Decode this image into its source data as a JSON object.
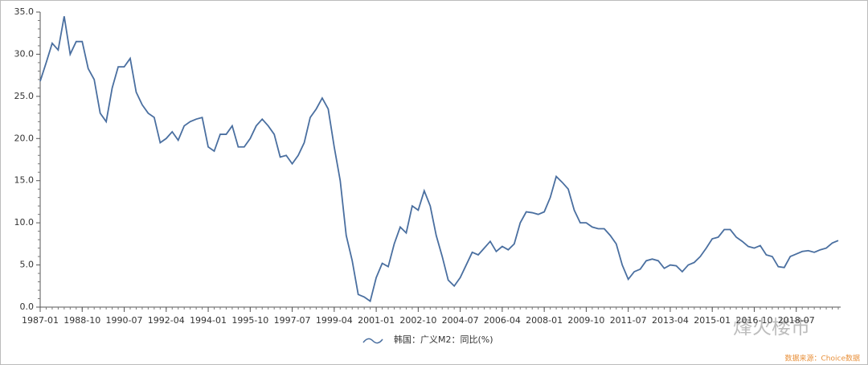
{
  "chart_data": {
    "type": "line",
    "x": [
      "1987-01",
      "1987-04",
      "1987-07",
      "1987-10",
      "1988-01",
      "1988-04",
      "1988-07",
      "1988-10",
      "1989-01",
      "1989-04",
      "1989-07",
      "1989-10",
      "1990-01",
      "1990-04",
      "1990-07",
      "1990-10",
      "1991-01",
      "1991-04",
      "1991-07",
      "1991-10",
      "1992-01",
      "1992-04",
      "1992-07",
      "1992-10",
      "1993-01",
      "1993-04",
      "1993-07",
      "1993-10",
      "1994-01",
      "1994-04",
      "1994-07",
      "1994-10",
      "1995-01",
      "1995-04",
      "1995-07",
      "1995-10",
      "1996-01",
      "1996-04",
      "1996-07",
      "1996-10",
      "1997-01",
      "1997-04",
      "1997-07",
      "1997-10",
      "1998-01",
      "1998-04",
      "1998-07",
      "1998-10",
      "1999-01",
      "1999-04",
      "1999-07",
      "1999-10",
      "2000-01",
      "2000-04",
      "2000-07",
      "2000-10",
      "2001-01",
      "2001-04",
      "2001-07",
      "2001-10",
      "2002-01",
      "2002-04",
      "2002-07",
      "2002-10",
      "2003-01",
      "2003-04",
      "2003-07",
      "2003-10",
      "2004-01",
      "2004-04",
      "2004-07",
      "2004-10",
      "2005-01",
      "2005-04",
      "2005-07",
      "2005-10",
      "2006-01",
      "2006-04",
      "2006-07",
      "2006-10",
      "2007-01",
      "2007-04",
      "2007-07",
      "2007-10",
      "2008-01",
      "2008-04",
      "2008-07",
      "2008-10",
      "2009-01",
      "2009-04",
      "2009-07",
      "2009-10",
      "2010-01",
      "2010-04",
      "2010-07",
      "2010-10",
      "2011-01",
      "2011-04",
      "2011-07",
      "2011-10",
      "2012-01",
      "2012-04",
      "2012-07",
      "2012-10",
      "2013-01",
      "2013-04",
      "2013-07",
      "2013-10",
      "2014-01",
      "2014-04",
      "2014-07",
      "2014-10",
      "2015-01",
      "2015-04",
      "2015-07",
      "2015-10",
      "2016-01",
      "2016-04",
      "2016-07",
      "2016-10",
      "2017-01",
      "2017-04",
      "2017-07",
      "2017-10",
      "2018-01",
      "2018-04",
      "2018-07",
      "2018-10",
      "2019-01",
      "2019-04",
      "2019-07",
      "2019-10",
      "2020-01",
      "2020-04"
    ],
    "series": [
      {
        "name": "韩国：广义M2：同比(%)",
        "color": "#4a6fa0",
        "values": [
          26.8,
          29,
          31.3,
          30.5,
          34.5,
          30,
          31.5,
          31.5,
          28.3,
          27,
          23,
          22,
          26,
          28.5,
          28.5,
          29.5,
          25.5,
          24,
          23,
          22.5,
          19.5,
          20,
          20.8,
          19.8,
          21.5,
          22,
          22.3,
          22.5,
          19,
          18.5,
          20.5,
          20.5,
          21.5,
          19,
          19,
          20,
          21.5,
          22.3,
          21.5,
          20.5,
          17.8,
          18,
          17,
          18,
          19.5,
          22.5,
          23.5,
          24.8,
          23.5,
          19,
          15,
          8.5,
          5.5,
          1.5,
          1.2,
          0.7,
          3.5,
          5.2,
          4.8,
          7.5,
          9.5,
          8.8,
          12,
          11.5,
          13.8,
          12,
          8.5,
          6,
          3.2,
          2.5,
          3.5,
          5,
          6.5,
          6.2,
          7,
          7.8,
          6.6,
          7.2,
          6.8,
          7.5,
          10,
          11.3,
          11.2,
          11,
          11.3,
          13,
          15.5,
          14.8,
          14,
          11.5,
          10,
          10,
          9.5,
          9.3,
          9.3,
          8.5,
          7.5,
          5,
          3.3,
          4.2,
          4.5,
          5.5,
          5.7,
          5.5,
          4.6,
          5,
          4.9,
          4.2,
          5,
          5.3,
          6,
          7,
          8.1,
          8.3,
          9.2,
          9.2,
          8.3,
          7.8,
          7.2,
          7,
          7.3,
          6.2,
          6,
          4.8,
          4.7,
          6,
          6.3,
          6.6,
          6.7,
          6.5,
          6.8,
          7,
          7.6,
          7.9
        ]
      }
    ],
    "xticks": [
      "1987-01",
      "1988-10",
      "1990-07",
      "1992-04",
      "1994-01",
      "1995-10",
      "1997-07",
      "1999-04",
      "2001-01",
      "2002-10",
      "2004-07",
      "2006-04",
      "2008-01",
      "2009-10",
      "2011-07",
      "2013-04",
      "2015-01",
      "2016-10",
      "2018-07"
    ],
    "ylim": [
      0,
      35
    ],
    "yticks": [
      {
        "value": 0,
        "label": "0.0"
      },
      {
        "value": 5,
        "label": "5.0"
      },
      {
        "value": 10,
        "label": "10.0"
      },
      {
        "value": 15,
        "label": "15.0"
      },
      {
        "value": 20,
        "label": "20.0"
      },
      {
        "value": 25,
        "label": "25.0"
      },
      {
        "value": 30,
        "label": "30.0"
      },
      {
        "value": 35,
        "label": "35.0"
      }
    ],
    "watermark": "烽火楼市",
    "source": "数据来源：Choice数据"
  }
}
